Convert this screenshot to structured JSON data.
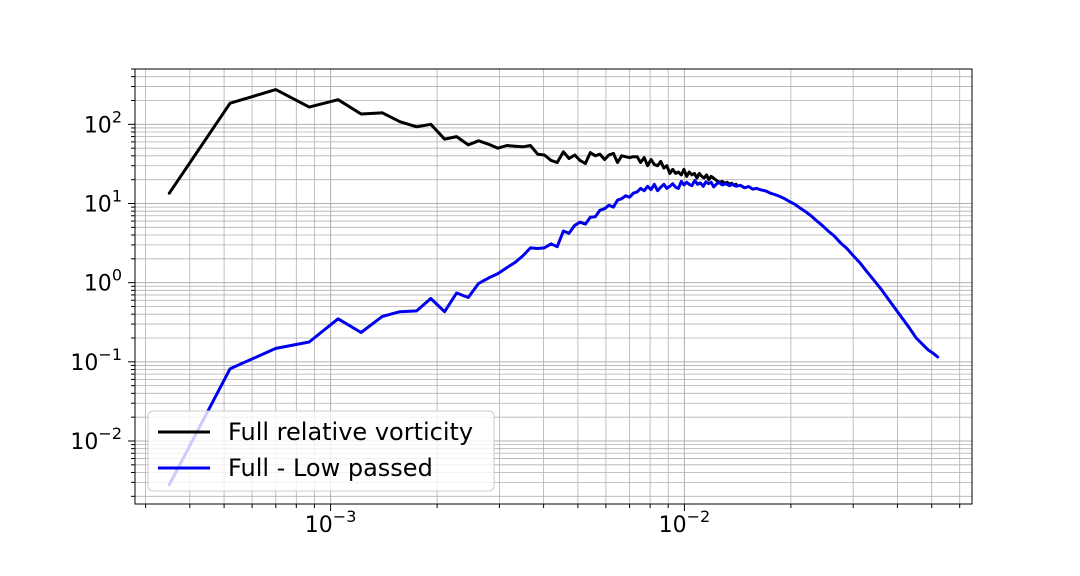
{
  "chart_data": {
    "type": "line",
    "xscale": "log",
    "yscale": "log",
    "xlim": [
      0.00028,
      0.065
    ],
    "ylim": [
      0.0016,
      500
    ],
    "grid": "both-major-minor",
    "legend_position": "lower-left",
    "title": "",
    "xlabel": "",
    "ylabel": "",
    "x_ticks": [
      {
        "value": 0.001,
        "base": "10",
        "exp": "−3"
      },
      {
        "value": 0.01,
        "base": "10",
        "exp": "−2"
      }
    ],
    "y_ticks": [
      {
        "value": 100,
        "base": "10",
        "exp": "2"
      },
      {
        "value": 10,
        "base": "10",
        "exp": "1"
      },
      {
        "value": 1,
        "base": "10",
        "exp": "0"
      },
      {
        "value": 0.1,
        "base": "10",
        "exp": "−1"
      },
      {
        "value": 0.01,
        "base": "10",
        "exp": "−2"
      }
    ],
    "series": [
      {
        "name": "Full relative vorticity",
        "color": "#000000",
        "x": [
          0.00035,
          0.00052,
          0.0007,
          0.00087,
          0.00105,
          0.00122,
          0.0014,
          0.00157,
          0.00175,
          0.00192,
          0.0021,
          0.00227,
          0.00245,
          0.00262,
          0.0028,
          0.00297,
          0.00315,
          0.00332,
          0.0035,
          0.00367,
          0.00385,
          0.00402,
          0.0042,
          0.00437,
          0.00455,
          0.00472,
          0.0049,
          0.00507,
          0.00525,
          0.00542,
          0.0056,
          0.00577,
          0.00595,
          0.00612,
          0.0063,
          0.00647,
          0.00665,
          0.00682,
          0.007,
          0.00717,
          0.00735,
          0.00752,
          0.0077,
          0.00787,
          0.00805,
          0.00822,
          0.0084,
          0.00857,
          0.00875,
          0.00892,
          0.0091,
          0.00927,
          0.00945,
          0.00962,
          0.0098,
          0.00997,
          0.01015,
          0.01032,
          0.0105,
          0.01067,
          0.01085,
          0.01102,
          0.0112,
          0.01137,
          0.01155,
          0.01172,
          0.0119,
          0.01207,
          0.01225,
          0.01242,
          0.0126,
          0.0128,
          0.013,
          0.0132,
          0.0134,
          0.0136,
          0.0138,
          0.014
        ],
        "values": [
          13.5,
          185,
          275,
          165,
          205,
          135,
          140,
          108,
          93,
          100,
          65,
          70,
          55,
          62,
          56,
          50,
          54,
          53,
          52,
          54,
          42,
          41,
          35,
          33,
          45,
          37,
          41,
          35,
          32,
          44,
          40,
          42,
          36,
          41,
          43,
          33,
          40,
          39,
          38,
          39,
          39,
          33,
          38,
          30,
          36,
          31,
          30,
          34,
          28,
          30,
          24,
          27,
          24,
          25,
          23,
          27,
          22,
          25,
          23,
          24,
          21,
          24,
          22,
          21,
          23,
          20,
          22,
          21,
          20,
          19,
          18.5,
          19,
          18,
          18.5,
          17.5,
          18,
          17,
          17.5
        ]
      },
      {
        "name": "Full - Low passed",
        "color": "#0000ee",
        "x": [
          0.00035,
          0.00052,
          0.0007,
          0.00087,
          0.00105,
          0.00122,
          0.0014,
          0.00157,
          0.00175,
          0.00192,
          0.0021,
          0.00227,
          0.00245,
          0.00262,
          0.0028,
          0.00297,
          0.00315,
          0.00332,
          0.0035,
          0.00367,
          0.00385,
          0.00402,
          0.0042,
          0.00437,
          0.00455,
          0.00472,
          0.0049,
          0.00507,
          0.00525,
          0.00542,
          0.0056,
          0.00577,
          0.00595,
          0.00612,
          0.0063,
          0.00647,
          0.00665,
          0.00682,
          0.007,
          0.00717,
          0.00735,
          0.00752,
          0.0077,
          0.00787,
          0.00805,
          0.00822,
          0.0084,
          0.00857,
          0.00875,
          0.00892,
          0.0091,
          0.00927,
          0.00945,
          0.00962,
          0.0098,
          0.00997,
          0.01015,
          0.01032,
          0.0105,
          0.0107,
          0.0109,
          0.0111,
          0.0113,
          0.0115,
          0.0117,
          0.0119,
          0.0121,
          0.0123,
          0.0125,
          0.0128,
          0.0131,
          0.0134,
          0.0137,
          0.014,
          0.0144,
          0.0148,
          0.0152,
          0.0156,
          0.016,
          0.0165,
          0.017,
          0.0175,
          0.018,
          0.0186,
          0.0192,
          0.0198,
          0.0205,
          0.0212,
          0.022,
          0.0228,
          0.0236,
          0.0245,
          0.0255,
          0.0265,
          0.0276,
          0.0288,
          0.03,
          0.0313,
          0.0327,
          0.0342,
          0.0358,
          0.0375,
          0.0393,
          0.0412,
          0.0432,
          0.0452,
          0.0472,
          0.049,
          0.0505,
          0.052
        ],
        "values": [
          0.0028,
          0.082,
          0.148,
          0.178,
          0.35,
          0.235,
          0.375,
          0.43,
          0.44,
          0.63,
          0.43,
          0.74,
          0.65,
          0.98,
          1.15,
          1.3,
          1.55,
          1.8,
          2.2,
          2.75,
          2.7,
          2.75,
          3.1,
          2.85,
          4.5,
          4.2,
          5.3,
          5.8,
          5.5,
          6.7,
          6.8,
          8.2,
          8.6,
          9.5,
          9.0,
          11.0,
          11.5,
          12.5,
          12.0,
          13.5,
          14.0,
          15.5,
          14.5,
          16.5,
          15.0,
          17.5,
          14.5,
          16.0,
          17.5,
          15.5,
          16.5,
          17.8,
          16.0,
          15.5,
          19.0,
          17.2,
          18.5,
          17.5,
          16.8,
          19.5,
          17.5,
          18.2,
          16.5,
          18.8,
          17.8,
          18.5,
          16.2,
          17.5,
          18.5,
          17.2,
          17.8,
          16.8,
          17.5,
          16.5,
          17.0,
          15.8,
          16.4,
          15.2,
          15.5,
          14.8,
          14.4,
          13.5,
          13.0,
          12.3,
          11.5,
          10.6,
          9.8,
          8.8,
          7.9,
          7.0,
          6.1,
          5.3,
          4.5,
          3.9,
          3.2,
          2.7,
          2.2,
          1.8,
          1.4,
          1.1,
          0.85,
          0.64,
          0.48,
          0.36,
          0.27,
          0.2,
          0.165,
          0.14,
          0.128,
          0.115
        ]
      }
    ]
  }
}
